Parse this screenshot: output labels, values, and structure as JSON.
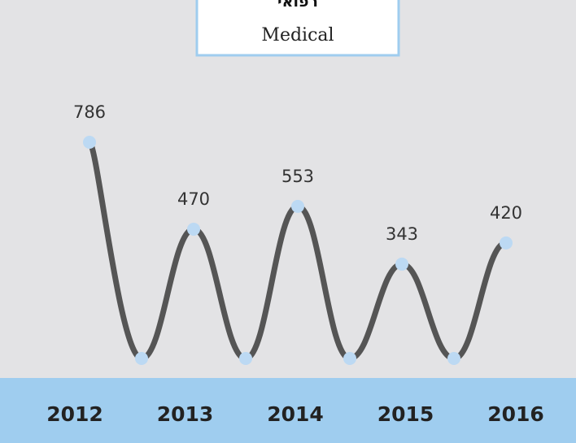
{
  "chart_data": {
    "type": "line",
    "title": "רפואי",
    "subtitle": "Medical",
    "categories": [
      "2012",
      null,
      "2013",
      null,
      "2014",
      null,
      "2015",
      null,
      "2016"
    ],
    "values": [
      786,
      0,
      470,
      0,
      553,
      0,
      343,
      0,
      420
    ],
    "value_labels": [
      "786",
      null,
      "470",
      null,
      "553",
      null,
      "343",
      null,
      "420"
    ],
    "color": "#555555",
    "marker_color": "#bcd9f3"
  }
}
